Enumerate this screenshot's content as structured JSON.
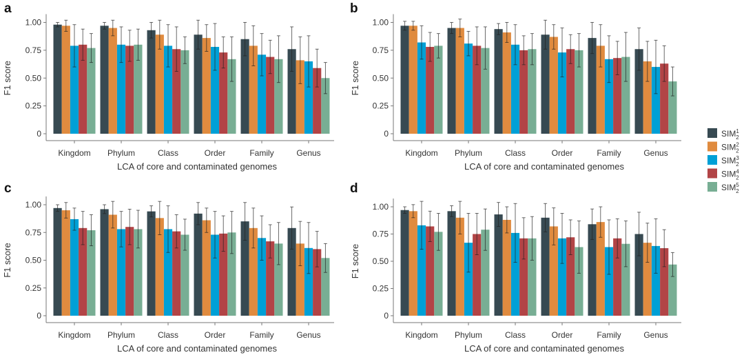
{
  "colors": {
    "SIM1": "#374a52",
    "SIM2": "#e08b3f",
    "SIM3": "#00a0d6",
    "SIM4": "#b24446",
    "SIM5": "#78ae94",
    "axis": "#777777",
    "errorbar": "#222222"
  },
  "legend": {
    "entries": [
      {
        "base": "SIM",
        "sup": "1",
        "sub": "2",
        "color_key": "SIM1"
      },
      {
        "base": "SIM",
        "sup": "2",
        "sub": "2",
        "color_key": "SIM2"
      },
      {
        "base": "SIM",
        "sup": "3",
        "sub": "2",
        "color_key": "SIM3"
      },
      {
        "base": "SIM",
        "sup": "4",
        "sub": "2",
        "color_key": "SIM4"
      },
      {
        "base": "SIM",
        "sup": "5",
        "sub": "2",
        "color_key": "SIM5"
      }
    ],
    "position": "right-middle"
  },
  "chart_data": [
    {
      "panel": "a",
      "type": "bar",
      "xlabel": "LCA of core and contaminated genomes",
      "ylabel": "F1 score",
      "ylim": [
        0,
        1.05
      ],
      "yticks": [
        0,
        0.25,
        0.5,
        0.75,
        1.0
      ],
      "ytick_labels": [
        "0",
        "0.25",
        "0.50",
        "0.75",
        "1.00"
      ],
      "categories": [
        "Kingdom",
        "Phylum",
        "Class",
        "Order",
        "Family",
        "Genus"
      ],
      "series": [
        {
          "name": "SIM_2^1",
          "values": [
            0.98,
            0.97,
            0.93,
            0.89,
            0.85,
            0.76
          ],
          "err": [
            0.02,
            0.03,
            0.07,
            0.13,
            0.15,
            0.2
          ]
        },
        {
          "name": "SIM_2^2",
          "values": [
            0.97,
            0.95,
            0.89,
            0.86,
            0.79,
            0.66
          ],
          "err": [
            0.05,
            0.07,
            0.13,
            0.12,
            0.18,
            0.21
          ]
        },
        {
          "name": "SIM_2^3",
          "values": [
            0.79,
            0.8,
            0.79,
            0.78,
            0.71,
            0.65
          ],
          "err": [
            0.19,
            0.16,
            0.19,
            0.21,
            0.19,
            0.23
          ]
        },
        {
          "name": "SIM_2^4",
          "values": [
            0.8,
            0.79,
            0.76,
            0.73,
            0.69,
            0.59
          ],
          "err": [
            0.14,
            0.14,
            0.2,
            0.14,
            0.15,
            0.17
          ]
        },
        {
          "name": "SIM_2^5",
          "values": [
            0.77,
            0.8,
            0.75,
            0.67,
            0.67,
            0.5
          ],
          "err": [
            0.13,
            0.14,
            0.12,
            0.2,
            0.21,
            0.14
          ]
        }
      ]
    },
    {
      "panel": "b",
      "type": "bar",
      "xlabel": "LCA of core and contaminated genomes",
      "ylabel": "F1 score",
      "ylim": [
        0,
        1.05
      ],
      "yticks": [
        0,
        0.25,
        0.5,
        0.75,
        1.0
      ],
      "ytick_labels": [
        "0",
        "0.25",
        "0.50",
        "0.75",
        "1.00"
      ],
      "categories": [
        "Kingdom",
        "Phylum",
        "Class",
        "Order",
        "Family",
        "Genus"
      ],
      "series": [
        {
          "name": "SIM_2^1",
          "values": [
            0.97,
            0.95,
            0.94,
            0.89,
            0.86,
            0.76
          ],
          "err": [
            0.04,
            0.05,
            0.05,
            0.13,
            0.14,
            0.19
          ]
        },
        {
          "name": "SIM_2^2",
          "values": [
            0.97,
            0.95,
            0.91,
            0.87,
            0.79,
            0.65
          ],
          "err": [
            0.04,
            0.08,
            0.09,
            0.11,
            0.19,
            0.18
          ]
        },
        {
          "name": "SIM_2^3",
          "values": [
            0.82,
            0.81,
            0.8,
            0.73,
            0.67,
            0.6
          ],
          "err": [
            0.15,
            0.11,
            0.18,
            0.22,
            0.21,
            0.24
          ]
        },
        {
          "name": "SIM_2^4",
          "values": [
            0.78,
            0.79,
            0.75,
            0.76,
            0.68,
            0.63
          ],
          "err": [
            0.13,
            0.17,
            0.13,
            0.13,
            0.15,
            0.16
          ]
        },
        {
          "name": "SIM_2^5",
          "values": [
            0.79,
            0.77,
            0.76,
            0.75,
            0.69,
            0.47
          ],
          "err": [
            0.11,
            0.19,
            0.14,
            0.15,
            0.22,
            0.13
          ]
        }
      ]
    },
    {
      "panel": "c",
      "type": "bar",
      "xlabel": "LCA of core and contaminated genomes",
      "ylabel": "F1 score",
      "ylim": [
        0,
        1.05
      ],
      "yticks": [
        0,
        0.25,
        0.5,
        0.75,
        1.0
      ],
      "ytick_labels": [
        "0",
        "0.25",
        "0.50",
        "0.75",
        "1.00"
      ],
      "categories": [
        "Kingdom",
        "Phylum",
        "Class",
        "Order",
        "Family",
        "Genus"
      ],
      "series": [
        {
          "name": "SIM_2^1",
          "values": [
            0.97,
            0.96,
            0.94,
            0.92,
            0.85,
            0.79
          ],
          "err": [
            0.03,
            0.04,
            0.05,
            0.1,
            0.17,
            0.19
          ]
        },
        {
          "name": "SIM_2^2",
          "values": [
            0.95,
            0.91,
            0.88,
            0.86,
            0.79,
            0.65
          ],
          "err": [
            0.07,
            0.12,
            0.15,
            0.11,
            0.18,
            0.2
          ]
        },
        {
          "name": "SIM_2^3",
          "values": [
            0.87,
            0.78,
            0.78,
            0.73,
            0.7,
            0.61
          ],
          "err": [
            0.1,
            0.16,
            0.21,
            0.21,
            0.2,
            0.23
          ]
        },
        {
          "name": "SIM_2^4",
          "values": [
            0.79,
            0.8,
            0.76,
            0.74,
            0.67,
            0.6
          ],
          "err": [
            0.15,
            0.16,
            0.15,
            0.16,
            0.15,
            0.16
          ]
        },
        {
          "name": "SIM_2^5",
          "values": [
            0.77,
            0.78,
            0.73,
            0.75,
            0.65,
            0.52
          ],
          "err": [
            0.14,
            0.17,
            0.14,
            0.19,
            0.19,
            0.13
          ]
        }
      ]
    },
    {
      "panel": "d",
      "type": "bar",
      "xlabel": "LCA of core and contaminated genomes",
      "ylabel": "F1 score",
      "ylim": [
        0,
        1.05
      ],
      "yticks": [
        0,
        0.25,
        0.5,
        0.75,
        1.0
      ],
      "ytick_labels": [
        "0",
        "0.25",
        "0.50",
        "0.75",
        "1.00"
      ],
      "categories": [
        "Kingdom",
        "Phylum",
        "Class",
        "Order",
        "Family",
        "Genus"
      ],
      "series": [
        {
          "name": "SIM_2^1",
          "values": [
            0.97,
            0.96,
            0.93,
            0.9,
            0.84,
            0.75
          ],
          "err": [
            0.03,
            0.05,
            0.11,
            0.13,
            0.14,
            0.2
          ]
        },
        {
          "name": "SIM_2^2",
          "values": [
            0.96,
            0.9,
            0.88,
            0.82,
            0.86,
            0.67
          ],
          "err": [
            0.06,
            0.15,
            0.12,
            0.17,
            0.14,
            0.18
          ]
        },
        {
          "name": "SIM_2^3",
          "values": [
            0.83,
            0.67,
            0.76,
            0.71,
            0.63,
            0.64
          ],
          "err": [
            0.22,
            0.27,
            0.27,
            0.23,
            0.25,
            0.25
          ]
        },
        {
          "name": "SIM_2^4",
          "values": [
            0.82,
            0.75,
            0.71,
            0.72,
            0.71,
            0.62
          ],
          "err": [
            0.14,
            0.19,
            0.19,
            0.16,
            0.18,
            0.17
          ]
        },
        {
          "name": "SIM_2^5",
          "values": [
            0.77,
            0.79,
            0.71,
            0.63,
            0.66,
            0.47
          ],
          "err": [
            0.17,
            0.19,
            0.2,
            0.24,
            0.21,
            0.11
          ]
        }
      ]
    }
  ]
}
